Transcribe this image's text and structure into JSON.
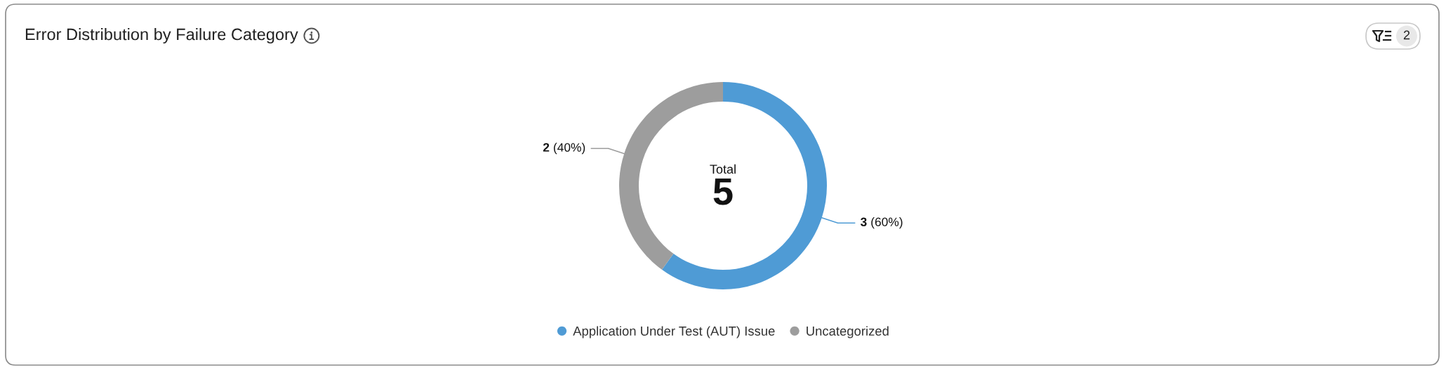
{
  "chart_data": {
    "type": "donut",
    "title": "Error Distribution by Failure Category",
    "categories": [
      "Application Under Test (AUT) Issue",
      "Uncategorized"
    ],
    "values": [
      3,
      2
    ],
    "colors": [
      "#4f9bd5",
      "#9d9d9d"
    ],
    "value_labels": [
      "3 (60%)",
      "2 (40%)"
    ],
    "annotations": [
      "Total",
      "5",
      "2"
    ],
    "legend": "bottom"
  }
}
